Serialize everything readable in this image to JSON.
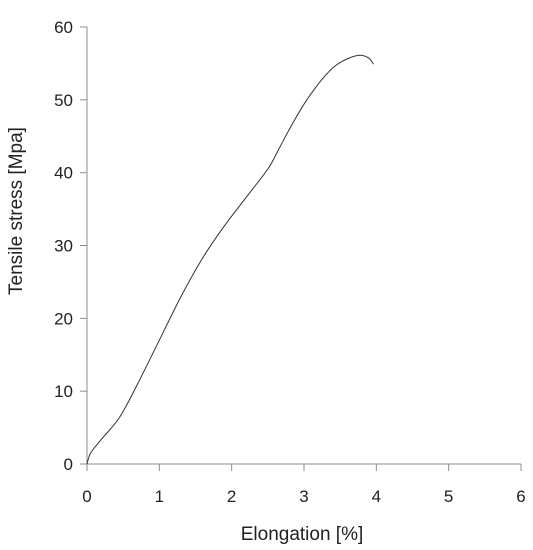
{
  "chart_data": {
    "type": "line",
    "title": "",
    "xlabel": "Elongation  [%]",
    "ylabel": "Tensile stress [Mpa]",
    "xlim": [
      0,
      6
    ],
    "ylim": [
      0,
      60
    ],
    "xticks": [
      0,
      1,
      2,
      3,
      4,
      5,
      6
    ],
    "yticks": [
      0,
      10,
      20,
      30,
      40,
      50,
      60
    ],
    "grid": false,
    "legend": "none",
    "line_color": "#333333",
    "axis_color": "#8c8c8c",
    "series": [
      {
        "x": [
          0,
          0.05,
          0.2,
          0.45,
          0.7,
          1.0,
          1.3,
          1.6,
          1.9,
          2.2,
          2.5,
          2.65,
          2.8,
          3.0,
          3.2,
          3.4,
          3.55,
          3.7,
          3.8,
          3.9,
          3.96
        ],
        "y": [
          0,
          1.5,
          3.4,
          6.4,
          11.0,
          17.0,
          23.0,
          28.3,
          32.7,
          36.6,
          40.5,
          43.2,
          46.0,
          49.4,
          52.2,
          54.4,
          55.4,
          56.0,
          56.1,
          55.7,
          54.9
        ]
      }
    ]
  }
}
